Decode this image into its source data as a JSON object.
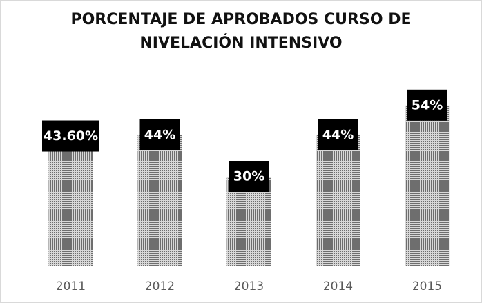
{
  "chart_data": {
    "type": "bar",
    "title": "PORCENTAJE DE APROBADOS CURSO DE NIVELACIÓN INTENSIVO",
    "categories": [
      "2011",
      "2012",
      "2013",
      "2014",
      "2015"
    ],
    "values": [
      43.6,
      44,
      30,
      44,
      54
    ],
    "value_labels": [
      "43.60%",
      "44%",
      "30%",
      "44%",
      "54%"
    ],
    "color": "#6e6e6e"
  }
}
